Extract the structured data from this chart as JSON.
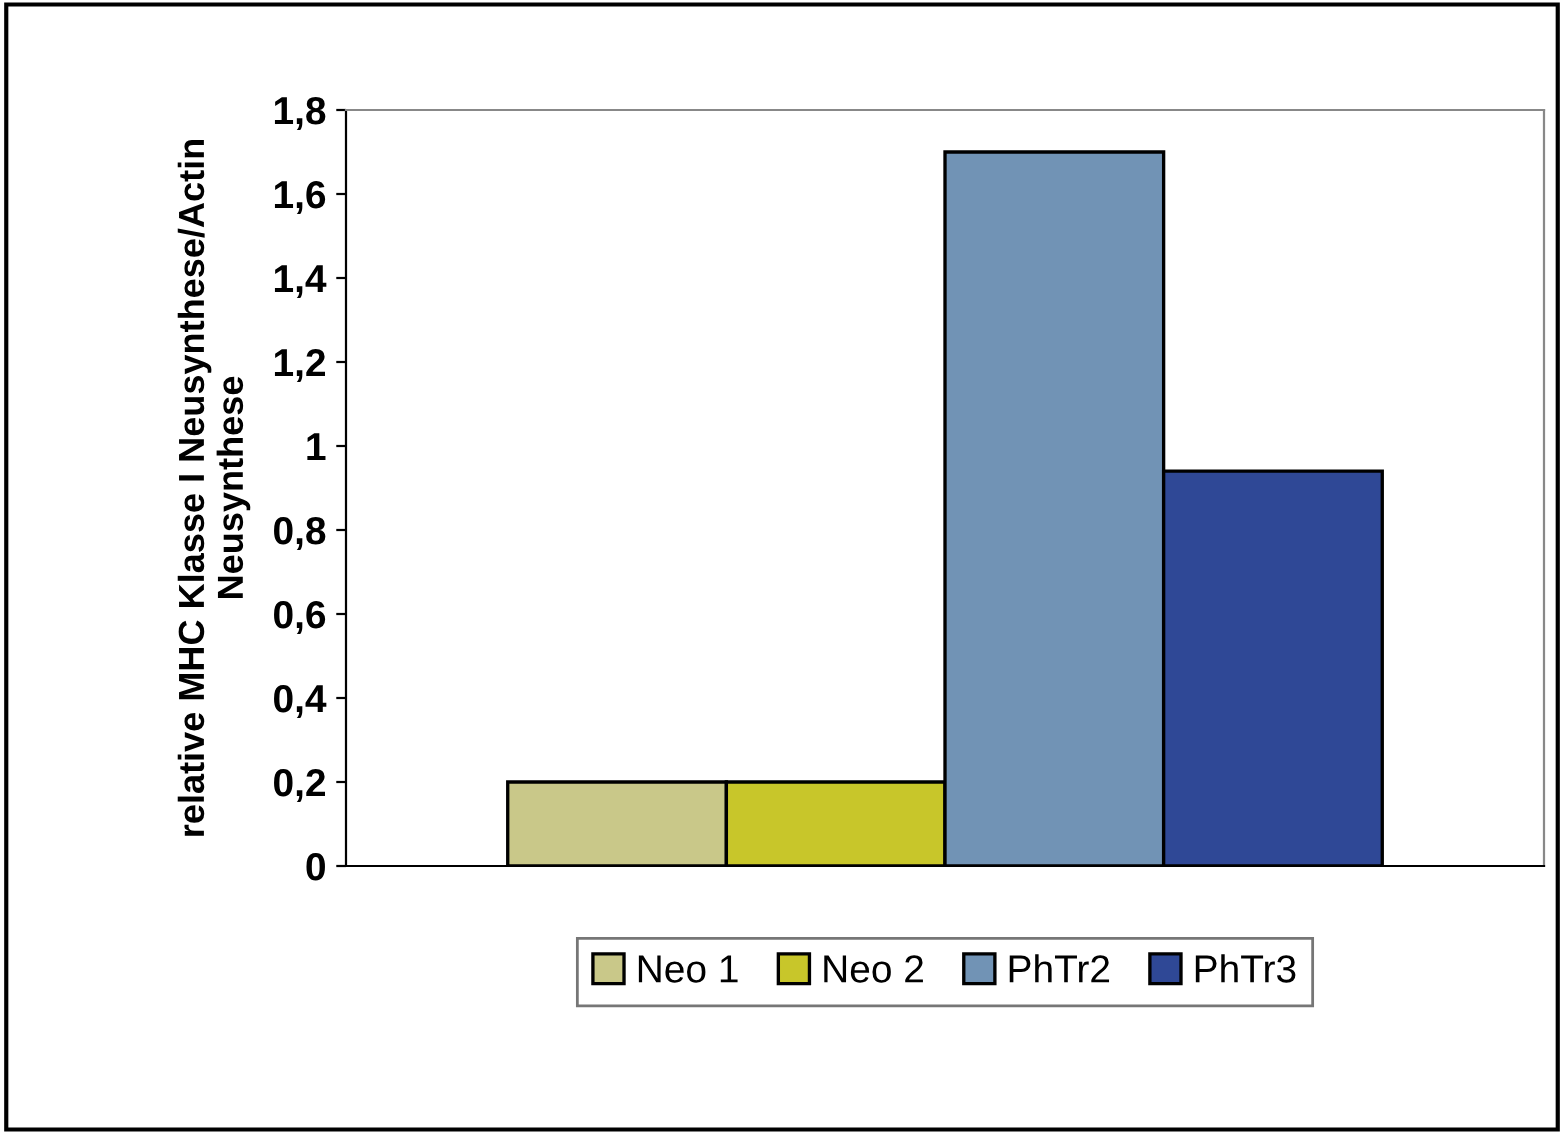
{
  "chart_data": {
    "type": "bar",
    "ylabel": "relative MHC Klasse I Neusynthese/Actin\nNeusynthese",
    "categories": [
      null
    ],
    "series": [
      {
        "name": "Neo 1",
        "color": "#c9c889",
        "values": [
          0.2
        ]
      },
      {
        "name": "Neo 2",
        "color": "#c8c62a",
        "values": [
          0.2
        ]
      },
      {
        "name": "PhTr2",
        "color": "#7193b5",
        "values": [
          1.7
        ]
      },
      {
        "name": "PhTr3",
        "color": "#2f4896",
        "values": [
          0.94
        ]
      }
    ],
    "ylim": [
      0,
      1.8
    ],
    "yticks": [
      {
        "value": 0,
        "label": "0"
      },
      {
        "value": 0.2,
        "label": "0,2"
      },
      {
        "value": 0.4,
        "label": "0,4"
      },
      {
        "value": 0.6,
        "label": "0,6"
      },
      {
        "value": 0.8,
        "label": "0,8"
      },
      {
        "value": 1,
        "label": "1"
      },
      {
        "value": 1.2,
        "label": "1,2"
      },
      {
        "value": 1.4,
        "label": "1,4"
      },
      {
        "value": 1.6,
        "label": "1,6"
      },
      {
        "value": 1.8,
        "label": "1,8"
      }
    ],
    "grid": false,
    "legend": "bottom"
  }
}
